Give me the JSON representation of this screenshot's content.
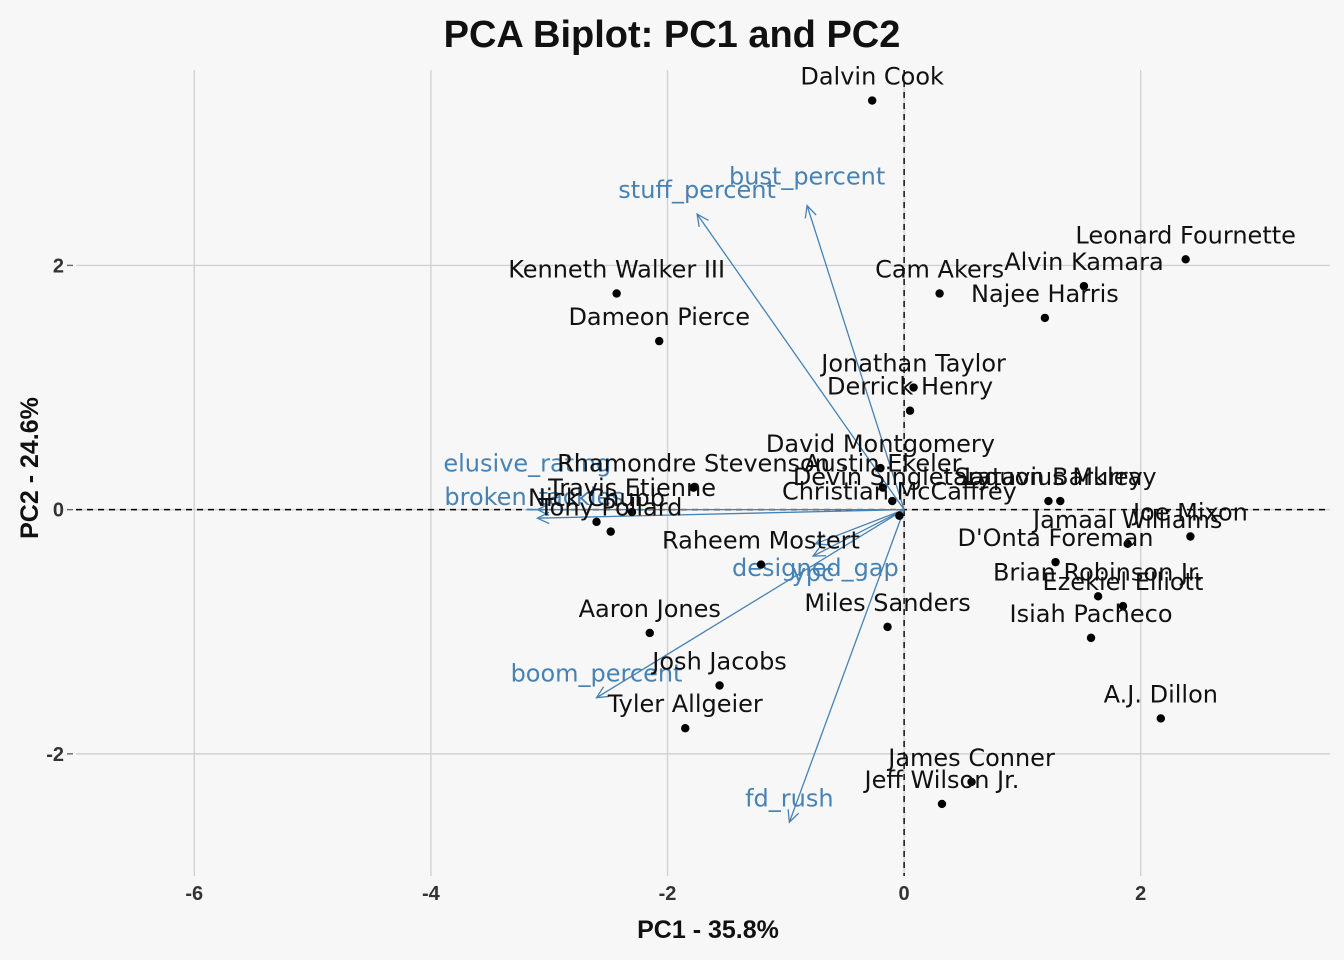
{
  "chart_data": {
    "type": "scatter",
    "title": "PCA Biplot: PC1 and PC2",
    "xlabel": "PC1 - 35.8%",
    "ylabel": "PC2 - 24.6%",
    "xlim": [
      -7.0,
      3.6
    ],
    "ylim": [
      -3.0,
      3.6
    ],
    "x_ticks": [
      -6,
      -4,
      -2,
      0,
      2
    ],
    "y_ticks": [
      -2,
      0,
      2
    ],
    "grid": true,
    "zero_lines": "dashed",
    "colors": {
      "points": "#000000",
      "labels": "#111111",
      "loadings": "#4682b4",
      "grid": "#d2d2d2",
      "background": "#f7f7f7"
    },
    "points": [
      {
        "name": "Dalvin Cook",
        "x": -0.27,
        "y": 3.35
      },
      {
        "name": "Leonard Fournette",
        "x": 2.38,
        "y": 2.05
      },
      {
        "name": "Alvin Kamara",
        "x": 1.52,
        "y": 1.83
      },
      {
        "name": "Cam Akers",
        "x": 0.3,
        "y": 1.77
      },
      {
        "name": "Kenneth Walker III",
        "x": -2.43,
        "y": 1.77
      },
      {
        "name": "Najee Harris",
        "x": 1.19,
        "y": 1.57
      },
      {
        "name": "Dameon Pierce",
        "x": -2.07,
        "y": 1.38
      },
      {
        "name": "Jonathan Taylor",
        "x": 0.08,
        "y": 1.0
      },
      {
        "name": "Derrick Henry",
        "x": 0.05,
        "y": 0.81
      },
      {
        "name": "David Montgomery",
        "x": -0.2,
        "y": 0.34
      },
      {
        "name": "Austin Ekeler",
        "x": -0.18,
        "y": 0.18
      },
      {
        "name": "Rhamondre Stevenson",
        "x": -1.78,
        "y": 0.18
      },
      {
        "name": "Devin Singletary",
        "x": -0.1,
        "y": 0.07
      },
      {
        "name": "Saquon Barkley",
        "x": 1.22,
        "y": 0.07
      },
      {
        "name": "Latavius Murray",
        "x": 1.32,
        "y": 0.07
      },
      {
        "name": "Travis Etienne",
        "x": -2.3,
        "y": -0.02
      },
      {
        "name": "Nick Chubb",
        "x": -2.6,
        "y": -0.1
      },
      {
        "name": "Christian McCaffrey",
        "x": -0.04,
        "y": -0.05
      },
      {
        "name": "Tony Pollard",
        "x": -2.48,
        "y": -0.18
      },
      {
        "name": "Joe Mixon",
        "x": 2.42,
        "y": -0.22
      },
      {
        "name": "Jamaal Williams",
        "x": 1.89,
        "y": -0.28
      },
      {
        "name": "D'Onta Foreman",
        "x": 1.28,
        "y": -0.43
      },
      {
        "name": "Raheem Mostert",
        "x": -1.21,
        "y": -0.45
      },
      {
        "name": "Brian Robinson Jr.",
        "x": 1.64,
        "y": -0.71
      },
      {
        "name": "Ezekiel Elliott",
        "x": 1.85,
        "y": -0.79
      },
      {
        "name": "Miles Sanders",
        "x": -0.14,
        "y": -0.96
      },
      {
        "name": "Aaron Jones",
        "x": -2.15,
        "y": -1.01
      },
      {
        "name": "Isiah Pacheco",
        "x": 1.58,
        "y": -1.05
      },
      {
        "name": "Josh Jacobs",
        "x": -1.56,
        "y": -1.44
      },
      {
        "name": "A.J. Dillon",
        "x": 2.17,
        "y": -1.71
      },
      {
        "name": "Tyler Allgeier",
        "x": -1.85,
        "y": -1.79
      },
      {
        "name": "James Conner",
        "x": 0.57,
        "y": -2.23
      },
      {
        "name": "Jeff Wilson Jr.",
        "x": 0.32,
        "y": -2.41
      }
    ],
    "loadings": [
      {
        "name": "stuff_percent",
        "x": -1.75,
        "y": 2.42
      },
      {
        "name": "bust_percent",
        "x": -0.82,
        "y": 2.49
      },
      {
        "name": "elusive_rating",
        "x": -3.1,
        "y": 0.0
      },
      {
        "name": "broken_tackles",
        "x": -3.1,
        "y": -0.07
      },
      {
        "name": "designed_gap",
        "x": -0.75,
        "y": -0.28
      },
      {
        "name": "ypc",
        "x": -0.77,
        "y": -0.38
      },
      {
        "name": "boom_percent",
        "x": -2.6,
        "y": -1.54
      },
      {
        "name": "fd_rush",
        "x": -0.97,
        "y": -2.56
      }
    ]
  }
}
